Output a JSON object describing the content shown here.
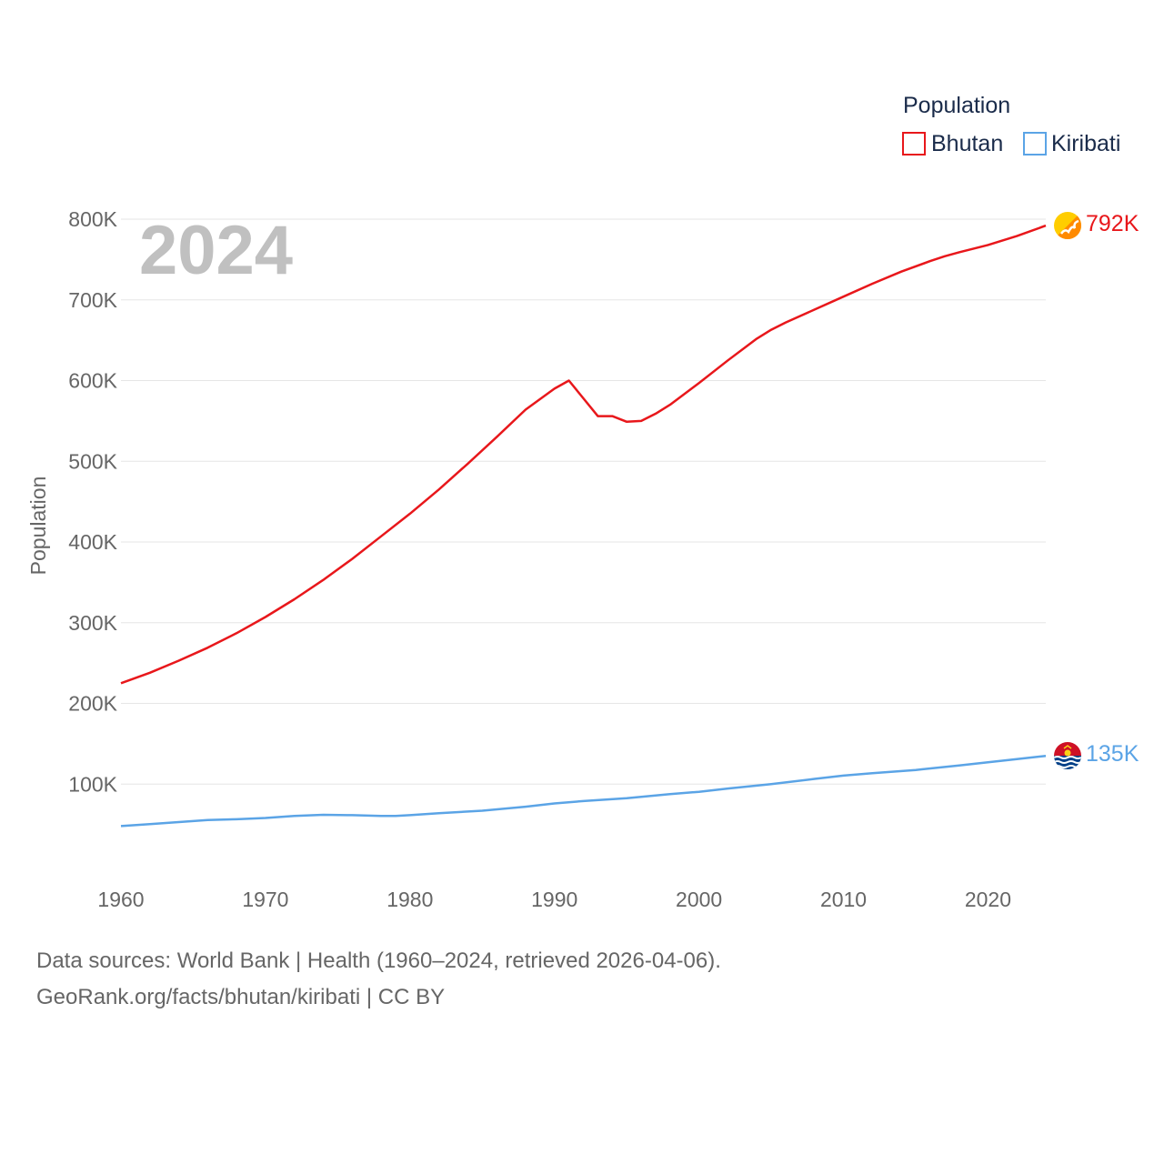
{
  "chart_data": {
    "type": "line",
    "year_label": "2024",
    "ylabel": "Population",
    "xlabel": "",
    "xlim": [
      1960,
      2024
    ],
    "ylim": [
      0,
      800000
    ],
    "x_ticks": [
      1960,
      1970,
      1980,
      1990,
      2000,
      2010,
      2020
    ],
    "x_tick_labels": [
      "1960",
      "1970",
      "1980",
      "1990",
      "2000",
      "2010",
      "2020"
    ],
    "y_ticks": [
      100000,
      200000,
      300000,
      400000,
      500000,
      600000,
      700000,
      800000
    ],
    "y_tick_labels": [
      "100K",
      "200K",
      "300K",
      "400K",
      "500K",
      "600K",
      "700K",
      "800K"
    ],
    "legend": {
      "title": "Population",
      "position": "top-right"
    },
    "grid": true,
    "series": [
      {
        "name": "Bhutan",
        "color": "#e8171b",
        "end_label": "792K",
        "x": [
          1960,
          1962,
          1964,
          1966,
          1968,
          1970,
          1972,
          1974,
          1976,
          1978,
          1980,
          1982,
          1984,
          1986,
          1988,
          1990,
          1991,
          1993,
          1994,
          1995,
          1996,
          1997,
          1998,
          2000,
          2002,
          2004,
          2005,
          2006,
          2008,
          2010,
          2012,
          2014,
          2016,
          2017,
          2018,
          2020,
          2022,
          2024
        ],
        "values": [
          225000,
          238000,
          253000,
          269000,
          287000,
          307000,
          329000,
          353000,
          379000,
          407000,
          435000,
          465000,
          497000,
          530000,
          564000,
          590000,
          600000,
          556000,
          556000,
          549000,
          550000,
          559000,
          570000,
          597000,
          625000,
          652000,
          663000,
          672000,
          688000,
          704000,
          720000,
          735000,
          748000,
          754000,
          759000,
          768000,
          779000,
          792000
        ]
      },
      {
        "name": "Kiribati",
        "color": "#5ba4e6",
        "end_label": "135K",
        "x": [
          1960,
          1962,
          1964,
          1966,
          1968,
          1970,
          1972,
          1974,
          1976,
          1978,
          1979,
          1980,
          1982,
          1985,
          1988,
          1990,
          1992,
          1995,
          1998,
          2000,
          2002,
          2005,
          2008,
          2010,
          2012,
          2015,
          2018,
          2020,
          2022,
          2024
        ],
        "values": [
          48000,
          50500,
          53000,
          55500,
          56500,
          58000,
          60500,
          62000,
          61500,
          60500,
          60500,
          61500,
          64000,
          67000,
          72000,
          76000,
          79000,
          82500,
          87500,
          90500,
          94500,
          100000,
          106500,
          110500,
          113500,
          117500,
          123000,
          127000,
          131000,
          135000
        ]
      }
    ]
  },
  "footer": {
    "line1": "Data sources: World Bank | Health (1960–2024, retrieved 2026-04-06).",
    "line2": "GeoRank.org/facts/bhutan/kiribati | CC BY"
  },
  "icons": {
    "bhutan_marker": "bhutan-flag-icon",
    "kiribati_marker": "kiribati-flag-icon"
  }
}
